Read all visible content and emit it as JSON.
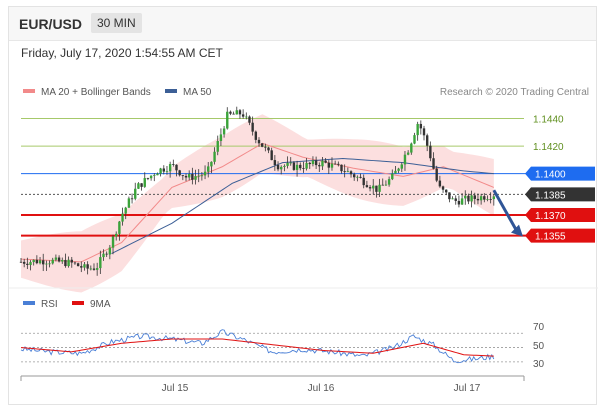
{
  "header": {
    "symbol": "EUR/USD",
    "timeframe": "30 MIN"
  },
  "datetime": "Friday, July 17, 2020 1:54:55 AM CET",
  "legend": [
    {
      "label": "MA 20 + Bollinger Bands",
      "color": "#f28a8a"
    },
    {
      "label": "MA 50",
      "color": "#3c5f96"
    }
  ],
  "credit": "Research © 2020 Trading Central",
  "levels": [
    {
      "value": 1.144,
      "label": "1.1440",
      "style": "green-line",
      "color": "#a6c96a"
    },
    {
      "value": 1.142,
      "label": "1.1420",
      "style": "green-line",
      "color": "#a6c96a"
    },
    {
      "value": 1.14,
      "label": "1.1400",
      "style": "blue-tag",
      "color": "#1e6cf0"
    },
    {
      "value": 1.1385,
      "label": "1.1385",
      "style": "current-tag",
      "color": "#333333"
    },
    {
      "value": 1.137,
      "label": "1.1370",
      "style": "red-tag",
      "color": "#e01010"
    },
    {
      "value": 1.1355,
      "label": "1.1355",
      "style": "red-tag",
      "color": "#e01010"
    }
  ],
  "rsi_legend": [
    {
      "label": "RSI",
      "color": "#4a7fd6"
    },
    {
      "label": "9MA",
      "color": "#e01010"
    }
  ],
  "rsi_levels": [
    "70",
    "50",
    "30"
  ],
  "x_ticks": [
    "Jul 15",
    "Jul 16",
    "Jul 17"
  ],
  "chart_data": {
    "type": "candlestick",
    "title": "EUR/USD",
    "timeframe": "30 MIN",
    "x_axis_ticks": [
      "Jul 15",
      "Jul 16",
      "Jul 17"
    ],
    "ylim": [
      1.1325,
      1.1452
    ],
    "price_trajectory": [
      {
        "t": 0.0,
        "price": 1.1336
      },
      {
        "t": 0.05,
        "price": 1.1337
      },
      {
        "t": 0.1,
        "price": 1.1335
      },
      {
        "t": 0.13,
        "price": 1.1331
      },
      {
        "t": 0.15,
        "price": 1.1332
      },
      {
        "t": 0.18,
        "price": 1.135
      },
      {
        "t": 0.2,
        "price": 1.137
      },
      {
        "t": 0.23,
        "price": 1.139
      },
      {
        "t": 0.27,
        "price": 1.1402
      },
      {
        "t": 0.3,
        "price": 1.1406
      },
      {
        "t": 0.33,
        "price": 1.1397
      },
      {
        "t": 0.37,
        "price": 1.14
      },
      {
        "t": 0.41,
        "price": 1.1442
      },
      {
        "t": 0.44,
        "price": 1.1444
      },
      {
        "t": 0.47,
        "price": 1.1425
      },
      {
        "t": 0.51,
        "price": 1.1406
      },
      {
        "t": 0.55,
        "price": 1.1405
      },
      {
        "t": 0.6,
        "price": 1.1408
      },
      {
        "t": 0.64,
        "price": 1.1403
      },
      {
        "t": 0.68,
        "price": 1.1395
      },
      {
        "t": 0.71,
        "price": 1.1388
      },
      {
        "t": 0.74,
        "price": 1.1398
      },
      {
        "t": 0.77,
        "price": 1.1418
      },
      {
        "t": 0.79,
        "price": 1.1438
      },
      {
        "t": 0.81,
        "price": 1.1418
      },
      {
        "t": 0.83,
        "price": 1.139
      },
      {
        "t": 0.86,
        "price": 1.138
      },
      {
        "t": 0.9,
        "price": 1.1382
      },
      {
        "t": 0.94,
        "price": 1.1385
      }
    ],
    "ma50_trajectory": [
      {
        "t": 0.18,
        "price": 1.1342
      },
      {
        "t": 0.3,
        "price": 1.1364
      },
      {
        "t": 0.42,
        "price": 1.1393
      },
      {
        "t": 0.52,
        "price": 1.1408
      },
      {
        "t": 0.64,
        "price": 1.1411
      },
      {
        "t": 0.76,
        "price": 1.1408
      },
      {
        "t": 0.88,
        "price": 1.1402
      },
      {
        "t": 0.94,
        "price": 1.14
      }
    ],
    "ma20_trajectory": [
      {
        "t": 0.0,
        "price": 1.1338
      },
      {
        "t": 0.12,
        "price": 1.1336
      },
      {
        "t": 0.2,
        "price": 1.135
      },
      {
        "t": 0.3,
        "price": 1.139
      },
      {
        "t": 0.4,
        "price": 1.1405
      },
      {
        "t": 0.48,
        "price": 1.1422
      },
      {
        "t": 0.56,
        "price": 1.1412
      },
      {
        "t": 0.66,
        "price": 1.1404
      },
      {
        "t": 0.76,
        "price": 1.1398
      },
      {
        "t": 0.84,
        "price": 1.1405
      },
      {
        "t": 0.94,
        "price": 1.139
      }
    ],
    "bollinger_width": 0.0018,
    "current_price": 1.1385,
    "projection": {
      "from": 1.1388,
      "to": 1.1355
    },
    "rsi_levels": [
      70,
      50,
      30
    ],
    "rsi_trajectory": [
      {
        "t": 0.0,
        "v": 48
      },
      {
        "t": 0.06,
        "v": 44
      },
      {
        "t": 0.12,
        "v": 42
      },
      {
        "t": 0.18,
        "v": 58
      },
      {
        "t": 0.24,
        "v": 66
      },
      {
        "t": 0.3,
        "v": 62
      },
      {
        "t": 0.36,
        "v": 56
      },
      {
        "t": 0.4,
        "v": 72
      },
      {
        "t": 0.44,
        "v": 62
      },
      {
        "t": 0.5,
        "v": 44
      },
      {
        "t": 0.56,
        "v": 48
      },
      {
        "t": 0.62,
        "v": 44
      },
      {
        "t": 0.68,
        "v": 38
      },
      {
        "t": 0.74,
        "v": 50
      },
      {
        "t": 0.78,
        "v": 66
      },
      {
        "t": 0.82,
        "v": 54
      },
      {
        "t": 0.86,
        "v": 32
      },
      {
        "t": 0.9,
        "v": 34
      },
      {
        "t": 0.94,
        "v": 38
      }
    ],
    "rsi_ma_trajectory": [
      {
        "t": 0.0,
        "v": 50
      },
      {
        "t": 0.1,
        "v": 44
      },
      {
        "t": 0.2,
        "v": 56
      },
      {
        "t": 0.3,
        "v": 62
      },
      {
        "t": 0.4,
        "v": 62
      },
      {
        "t": 0.5,
        "v": 54
      },
      {
        "t": 0.6,
        "v": 46
      },
      {
        "t": 0.7,
        "v": 42
      },
      {
        "t": 0.8,
        "v": 56
      },
      {
        "t": 0.88,
        "v": 40
      },
      {
        "t": 0.94,
        "v": 38
      }
    ]
  }
}
